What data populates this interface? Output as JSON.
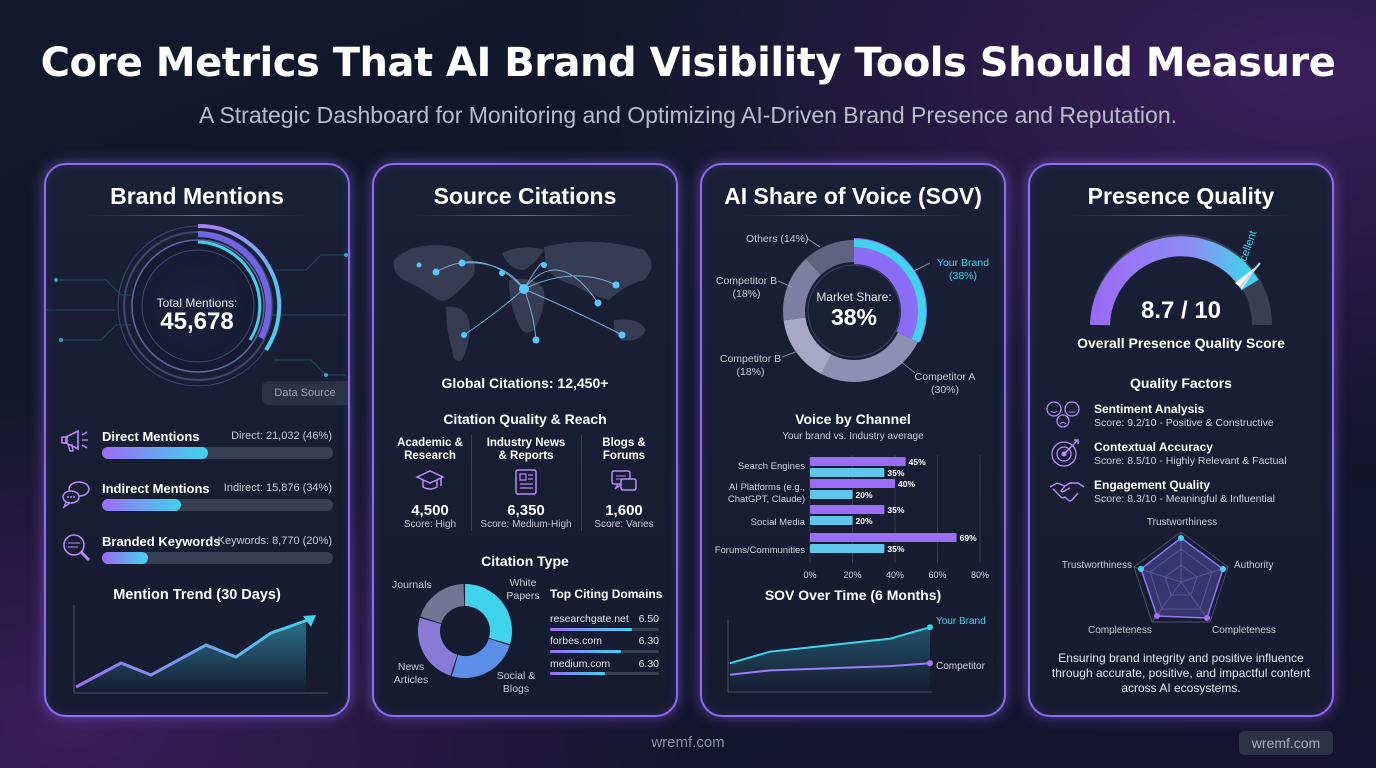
{
  "header": {
    "title": "Core Metrics That AI Brand Visibility Tools Should Measure",
    "subtitle": "A Strategic Dashboard for Monitoring and Optimizing AI-Driven Brand Presence and Reputation."
  },
  "brand_mentions": {
    "title": "Brand Mentions",
    "total_label": "Total Mentions:",
    "total_value": "45,678",
    "data_source": "Data Source",
    "rows": [
      {
        "label": "Direct Mentions",
        "value": "Direct: 21,032 (46%)",
        "pct": 46
      },
      {
        "label": "Indirect Mentions",
        "value": "Indirect: 15,876 (34%)",
        "pct": 34
      },
      {
        "label": "Branded Keywords",
        "value": "Keywords: 8,770 (20%)",
        "pct": 20
      }
    ],
    "trend_title": "Mention Trend (30 Days)"
  },
  "source_citations": {
    "title": "Source Citations",
    "global": "Global Citations: 12,450+",
    "quality_title": "Citation Quality & Reach",
    "columns": [
      {
        "head1": "Academic &",
        "head2": "Research",
        "value": "4,500",
        "score": "Score: High"
      },
      {
        "head1": "Industry News",
        "head2": "& Reports",
        "value": "6,350",
        "score": "Score: Medium-High"
      },
      {
        "head1": "Blogs &",
        "head2": "Forums",
        "value": "1,600",
        "score": "Score: Varies"
      }
    ],
    "type_title": "Citation Type",
    "type_labels": {
      "journals": "Journals",
      "white1": "White",
      "white2": "Papers",
      "news1": "News",
      "news2": "Articles",
      "social1": "Social &",
      "social2": "Blogs"
    },
    "domains_title": "Top Citing Domains",
    "domains": [
      {
        "name": "researchgate.net",
        "value": "6.50",
        "fill": 0.75
      },
      {
        "name": "forbes.com",
        "value": "6.30",
        "fill": 0.65
      },
      {
        "name": "medium.com",
        "value": "6.30",
        "fill": 0.5
      }
    ]
  },
  "sov": {
    "title": "AI Share of Voice (SOV)",
    "center_label": "Market Share:",
    "center_value": "38%",
    "labels": {
      "others": "Others (14%)",
      "compB1a": "Competitor B",
      "compB1b": "(18%)",
      "compB2a": "Competitor B",
      "compB2b": "(18%)",
      "yoursa": "Your Brand",
      "yoursb": "(38%)",
      "compAa": "Competitor A",
      "compAb": "(30%)"
    },
    "channel_title": "Voice by Channel",
    "channel_subtitle": "Your brand vs. Industry average",
    "channel_labels": [
      "Search Engines",
      "AI Platforms (e.g.,",
      "ChatGPT, Claude)",
      "Social Media",
      "Forums/Communities"
    ],
    "axis_ticks": [
      "0%",
      "20%",
      "40%",
      "60%",
      "80%"
    ],
    "trend_title": "SOV Over Time (6 Months)",
    "trend_labels": {
      "yours": "Your Brand",
      "comp": "Competitor"
    }
  },
  "quality": {
    "title": "Presence Quality",
    "score": "8.7 / 10",
    "gauge_label": "Excellent",
    "score_label": "Overall Presence Quality Score",
    "factors_title": "Quality Factors",
    "factors": [
      {
        "name": "Sentiment Analysis",
        "detail": "Score: 9.2/10 - Positive & Constructive"
      },
      {
        "name": "Contextual Accuracy",
        "detail": "Score: 8.5/10 - Highly Relevant & Factual"
      },
      {
        "name": "Engagement Quality",
        "detail": "Score: 8.3/10 - Meaningful & Influential"
      }
    ],
    "radar_labels": {
      "top": "Trustworthiness",
      "left": "Trustworthiness",
      "right": "Authority",
      "bl": "Completeness",
      "br": "Completeness"
    },
    "footer1": "Ensuring brand integrity and positive influence",
    "footer2": "through accurate, positive, and impactful content",
    "footer3": "across AI ecosystems."
  },
  "footer": {
    "site": "wremf.com",
    "badge": "wremf.com"
  },
  "chart_data": [
    {
      "type": "donut",
      "categories": [
        "Your Brand",
        "Competitor A",
        "Competitor B",
        "Competitor B",
        "Others"
      ],
      "values": [
        38,
        30,
        18,
        18,
        14
      ],
      "title": "AI Share of Voice (SOV)"
    },
    {
      "type": "bar",
      "title": "Voice by Channel",
      "categories": [
        "Search Engines",
        "AI Platforms (e.g., ChatGPT, Claude)",
        "Social Media",
        "Forums/Communities"
      ],
      "series": [
        {
          "values": [
            45,
            40,
            35,
            69
          ]
        },
        {
          "values": [
            35,
            20,
            20,
            35
          ]
        }
      ],
      "xlim": [
        0,
        80
      ],
      "x_ticks": [
        "0%",
        "20%",
        "40%",
        "60%",
        "80%"
      ]
    },
    {
      "type": "line",
      "title": "SOV Over Time (6 Months)",
      "series": [
        {
          "name": "Your Brand",
          "values": [
            20,
            28,
            31,
            34,
            37,
            45
          ]
        },
        {
          "name": "Competitor",
          "values": [
            12,
            15,
            16,
            17,
            18,
            20
          ]
        }
      ]
    },
    {
      "type": "donut",
      "title": "Citation Type",
      "categories": [
        "White Papers",
        "Social & Blogs",
        "News Articles",
        "Journals"
      ],
      "values": [
        30,
        25,
        25,
        20
      ]
    }
  ]
}
